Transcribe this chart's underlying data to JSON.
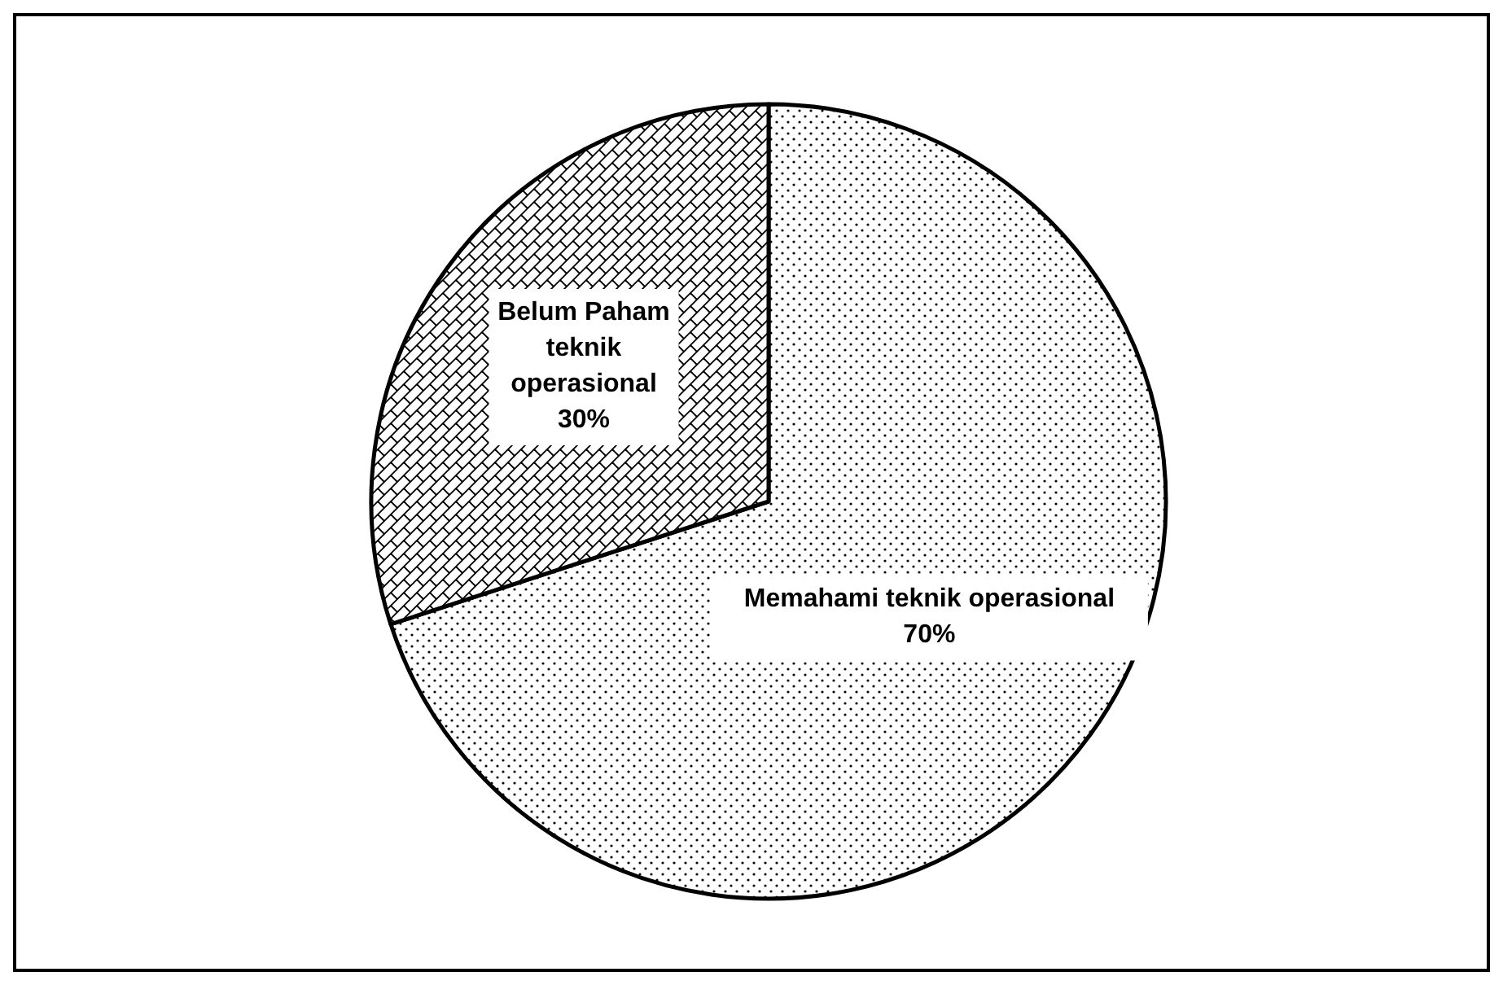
{
  "chart_data": {
    "type": "pie",
    "categories": [
      "Memahami teknik operasional",
      "Belum Paham teknik operasional"
    ],
    "values": [
      70,
      30
    ],
    "value_labels": [
      "70%",
      "30%"
    ],
    "colors": [
      "#ffffff",
      "#ffffff"
    ]
  }
}
